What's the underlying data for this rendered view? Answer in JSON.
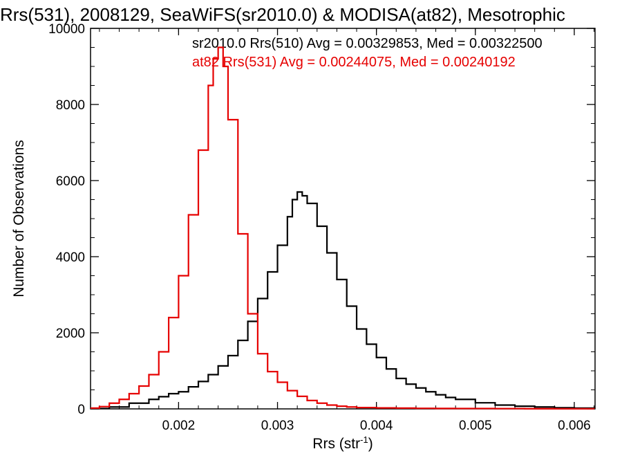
{
  "chart_data": {
    "type": "line",
    "title": "Rrs(531), 2008129, SeaWiFS(sr2010.0) & MODISA(at82), Mesotrophic",
    "xlabel": "Rrs (str",
    "xlabel_sup": "-1",
    "xlabel_close": ")",
    "ylabel": "Number of Observations",
    "xlim": [
      0.00111,
      0.00621
    ],
    "ylim": [
      0,
      10000
    ],
    "x_ticks": [
      0.002,
      0.003,
      0.004,
      0.005,
      0.006
    ],
    "x_tick_labels": [
      "0.002",
      "0.003",
      "0.004",
      "0.005",
      "0.006"
    ],
    "y_ticks": [
      0,
      2000,
      4000,
      6000,
      8000,
      10000
    ],
    "y_tick_labels": [
      "0",
      "2000",
      "4000",
      "6000",
      "8000",
      "10000"
    ],
    "grid": false,
    "legend_position": "top",
    "series": [
      {
        "name": "sr2010.0 Rrs(510) Avg = 0.00329853, Med = 0.00322500",
        "color": "#000000",
        "x": [
          0.0011,
          0.0013,
          0.0015,
          0.0017,
          0.0018,
          0.0019,
          0.002,
          0.0021,
          0.0022,
          0.0023,
          0.0024,
          0.0025,
          0.0026,
          0.0027,
          0.0028,
          0.0029,
          0.003,
          0.0031,
          0.00315,
          0.0032,
          0.00325,
          0.0033,
          0.0034,
          0.0035,
          0.0036,
          0.0037,
          0.0038,
          0.0039,
          0.004,
          0.0041,
          0.0042,
          0.0043,
          0.0044,
          0.0045,
          0.0046,
          0.0047,
          0.0048,
          0.005,
          0.0052,
          0.0054,
          0.0056,
          0.0058,
          0.006,
          0.0062
        ],
        "y": [
          10,
          50,
          150,
          250,
          320,
          400,
          450,
          580,
          720,
          900,
          1130,
          1400,
          1800,
          2300,
          2900,
          3600,
          4300,
          5050,
          5500,
          5700,
          5600,
          5400,
          4800,
          4100,
          3400,
          2700,
          2100,
          1700,
          1350,
          1050,
          800,
          650,
          550,
          450,
          370,
          300,
          250,
          160,
          100,
          70,
          50,
          30,
          20,
          10
        ]
      },
      {
        "name": "at82 Rrs(531) Avg = 0.00244075, Med = 0.00240192",
        "color": "#e60000",
        "x": [
          0.0011,
          0.0012,
          0.0013,
          0.0014,
          0.0015,
          0.0016,
          0.0017,
          0.0018,
          0.0019,
          0.002,
          0.0021,
          0.0022,
          0.0023,
          0.00235,
          0.0024,
          0.00245,
          0.0025,
          0.0026,
          0.0027,
          0.0028,
          0.0029,
          0.003,
          0.0031,
          0.0032,
          0.0033,
          0.0034,
          0.0035,
          0.0036,
          0.0037,
          0.0038,
          0.004,
          0.0042,
          0.0044,
          0.0046,
          0.0048,
          0.005,
          0.0052,
          0.0055,
          0.0058,
          0.0062
        ],
        "y": [
          20,
          60,
          150,
          250,
          400,
          600,
          900,
          1500,
          2400,
          3500,
          5100,
          6800,
          8500,
          9200,
          9500,
          9000,
          7600,
          4600,
          2500,
          1450,
          980,
          700,
          480,
          330,
          220,
          150,
          100,
          70,
          50,
          35,
          25,
          20,
          15,
          12,
          10,
          10,
          8,
          5,
          3,
          2
        ]
      }
    ]
  }
}
